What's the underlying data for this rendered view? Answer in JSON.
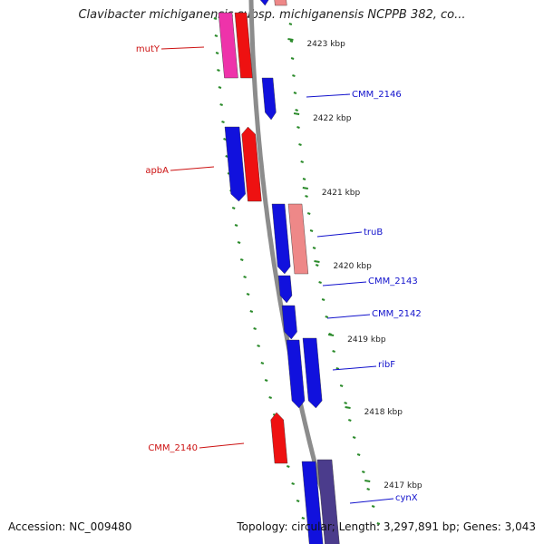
{
  "title": "Clavibacter michiganensis subsp. michiganensis NCPPB 382, co...",
  "footer": {
    "accession": "Accession: NC_009480",
    "summary": "Topology: circular; Length: 3,297,891 bp; Genes: 3,043"
  },
  "colors": {
    "forward_cds": "#ee1111",
    "forward_light": "#ee8888",
    "reverse_cds": "#1111dd",
    "reverse_dark": "#4b3c8c",
    "pink_cds": "#ee33aa",
    "backbone": "#8c8c8c",
    "tick": "#2a8a2a",
    "label_blue": "#1111cc",
    "label_red": "#cc1111"
  },
  "kbp_ticks": [
    "2423 kbp",
    "2422 kbp",
    "2421 kbp",
    "2420 kbp",
    "2419 kbp",
    "2418 kbp",
    "2417 kbp"
  ],
  "genes": [
    {
      "label": "mutY",
      "strand": "left",
      "color": "label_red"
    },
    {
      "label": "CMM_2146",
      "strand": "right",
      "color": "label_blue"
    },
    {
      "label": "apbA",
      "strand": "left",
      "color": "label_red"
    },
    {
      "label": "truB",
      "strand": "right",
      "color": "label_blue"
    },
    {
      "label": "CMM_2143",
      "strand": "right",
      "color": "label_blue"
    },
    {
      "label": "CMM_2142",
      "strand": "right",
      "color": "label_blue"
    },
    {
      "label": "ribF",
      "strand": "right",
      "color": "label_blue"
    },
    {
      "label": "CMM_2140",
      "strand": "left",
      "color": "label_red"
    },
    {
      "label": "cynX",
      "strand": "right",
      "color": "label_blue"
    }
  ]
}
